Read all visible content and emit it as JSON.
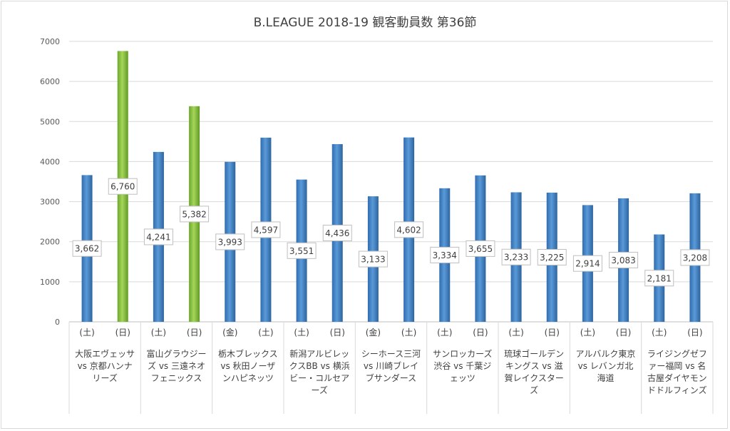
{
  "chart_data": {
    "type": "bar",
    "title": "B.LEAGUE 2018-19 観客動員数 第36節",
    "xlabel": "",
    "ylabel": "",
    "ylim": [
      0,
      7000
    ],
    "yticks": [
      "0",
      "1000",
      "2000",
      "3000",
      "4000",
      "5000",
      "6000",
      "7000"
    ],
    "grid": true,
    "legend": "none",
    "colors": {
      "default": "#4a86c8",
      "highlight": "#8cc63f"
    },
    "categories": [
      "大阪エヴェッサ vs 京都ハンナリーズ",
      "富山グラウジーズ vs 三遠ネオフェニックス",
      "栃木ブレックス vs 秋田ノーザンハピネッツ",
      "新潟アルビレックスBB vs 横浜ビー・コルセアーズ",
      "シーホース三河 vs 川崎ブレイブサンダース",
      "サンロッカーズ渋谷 vs 千葉ジェッツ",
      "琉球ゴールデンキングス vs 滋賀レイクスターズ",
      "アルバルク東京 vs レバンガ北海道",
      "ライジングゼファー福岡 vs 名古屋ダイヤモンドドルフィンズ"
    ],
    "bars": [
      {
        "day": "(土)",
        "value": 3662,
        "label": "3,662",
        "highlight": false
      },
      {
        "day": "(日)",
        "value": 6760,
        "label": "6,760",
        "highlight": true
      },
      {
        "day": "(土)",
        "value": 4241,
        "label": "4,241",
        "highlight": false
      },
      {
        "day": "(日)",
        "value": 5382,
        "label": "5,382",
        "highlight": true
      },
      {
        "day": "(金)",
        "value": 3993,
        "label": "3,993",
        "highlight": false
      },
      {
        "day": "(土)",
        "value": 4597,
        "label": "4,597",
        "highlight": false
      },
      {
        "day": "(土)",
        "value": 3551,
        "label": "3,551",
        "highlight": false
      },
      {
        "day": "(日)",
        "value": 4436,
        "label": "4,436",
        "highlight": false
      },
      {
        "day": "(金)",
        "value": 3133,
        "label": "3,133",
        "highlight": false
      },
      {
        "day": "(土)",
        "value": 4602,
        "label": "4,602",
        "highlight": false
      },
      {
        "day": "(土)",
        "value": 3334,
        "label": "3,334",
        "highlight": false
      },
      {
        "day": "(日)",
        "value": 3655,
        "label": "3,655",
        "highlight": false
      },
      {
        "day": "(土)",
        "value": 3233,
        "label": "3,233",
        "highlight": false
      },
      {
        "day": "(日)",
        "value": 3225,
        "label": "3,225",
        "highlight": false
      },
      {
        "day": "(土)",
        "value": 2914,
        "label": "2,914",
        "highlight": false
      },
      {
        "day": "(日)",
        "value": 3083,
        "label": "3,083",
        "highlight": false
      },
      {
        "day": "(土)",
        "value": 2181,
        "label": "2,181",
        "highlight": false
      },
      {
        "day": "(日)",
        "value": 3208,
        "label": "3,208",
        "highlight": false
      }
    ]
  }
}
